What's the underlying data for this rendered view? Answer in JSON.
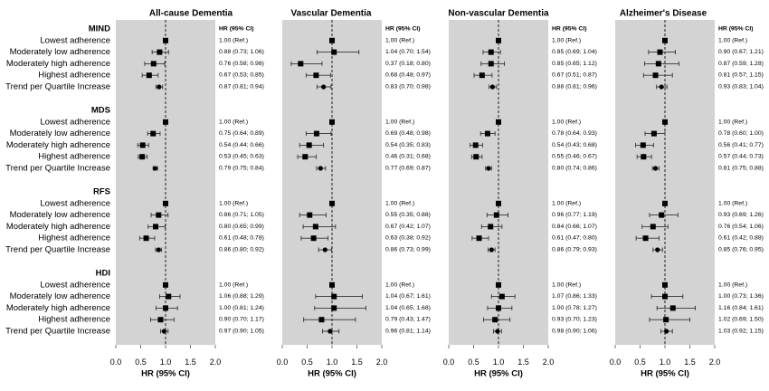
{
  "y_axis": {
    "groups": [
      "MIND",
      "MDS",
      "RFS",
      "HDI"
    ],
    "rows": [
      "Lowest adherence",
      "Moderately low adherence",
      "Moderately high adherence",
      "Highest adherence",
      "Trend per Quartile Increase"
    ]
  },
  "chart_data": [
    {
      "type": "scatter",
      "title": "All-cause Dementia",
      "column_header": "HR (95% CI)",
      "xlabel": "HR (95% CI)",
      "xlim": [
        0,
        2
      ],
      "xticks": [
        0,
        0.5,
        1.0,
        1.5,
        2.0
      ],
      "xtick_labels": [
        "0.0",
        "0.5",
        "1.0",
        "1.5",
        "2.0"
      ],
      "reference_line": 1.0,
      "groups": [
        {
          "rows": [
            {
              "hr": 1.0,
              "lo": null,
              "hi": null,
              "label": "1.00 (Ref.)"
            },
            {
              "hr": 0.88,
              "lo": 0.73,
              "hi": 1.06,
              "label": "0.88 (0.73; 1.06)"
            },
            {
              "hr": 0.76,
              "lo": 0.58,
              "hi": 0.98,
              "label": "0.76 (0.58; 0.98)"
            },
            {
              "hr": 0.67,
              "lo": 0.53,
              "hi": 0.85,
              "label": "0.67 (0.53; 0.85)"
            },
            {
              "hr": 0.87,
              "lo": 0.81,
              "hi": 0.94,
              "label": "0.87 (0.81; 0.94)"
            }
          ]
        },
        {
          "rows": [
            {
              "hr": 1.0,
              "lo": null,
              "hi": null,
              "label": "1.00 (Ref.)"
            },
            {
              "hr": 0.75,
              "lo": 0.64,
              "hi": 0.89,
              "label": "0.75 (0.64; 0.89)"
            },
            {
              "hr": 0.54,
              "lo": 0.44,
              "hi": 0.66,
              "label": "0.54 (0.44; 0.66)"
            },
            {
              "hr": 0.53,
              "lo": 0.45,
              "hi": 0.63,
              "label": "0.53 (0.45; 0.63)"
            },
            {
              "hr": 0.79,
              "lo": 0.75,
              "hi": 0.84,
              "label": "0.79 (0.75; 0.84)"
            }
          ]
        },
        {
          "rows": [
            {
              "hr": 1.0,
              "lo": null,
              "hi": null,
              "label": "1.00 (Ref.)"
            },
            {
              "hr": 0.86,
              "lo": 0.71,
              "hi": 1.05,
              "label": "0.86 (0.71; 1.05)"
            },
            {
              "hr": 0.8,
              "lo": 0.65,
              "hi": 0.99,
              "label": "0.80 (0.65; 0.99)"
            },
            {
              "hr": 0.61,
              "lo": 0.48,
              "hi": 0.78,
              "label": "0.61 (0.48; 0.78)"
            },
            {
              "hr": 0.86,
              "lo": 0.8,
              "hi": 0.92,
              "label": "0.86 (0.80; 0.92)"
            }
          ]
        },
        {
          "rows": [
            {
              "hr": 1.0,
              "lo": null,
              "hi": null,
              "label": "1.00 (Ref.)"
            },
            {
              "hr": 1.06,
              "lo": 0.88,
              "hi": 1.29,
              "label": "1.06 (0.88; 1.29)"
            },
            {
              "hr": 1.0,
              "lo": 0.81,
              "hi": 1.24,
              "label": "1.00 (0.81; 1.24)"
            },
            {
              "hr": 0.9,
              "lo": 0.7,
              "hi": 1.17,
              "label": "0.90 (0.70; 1.17)"
            },
            {
              "hr": 0.97,
              "lo": 0.9,
              "hi": 1.05,
              "label": "0.97 (0.90; 1.05)"
            }
          ]
        }
      ]
    },
    {
      "type": "scatter",
      "title": "Vascular Dementia",
      "column_header": "HR (95% CI)",
      "xlabel": "HR (95% CI)",
      "xlim": [
        0,
        2
      ],
      "xticks": [
        0,
        0.5,
        1.0,
        1.5,
        2.0
      ],
      "xtick_labels": [
        "0.0",
        "0.5",
        "1.0",
        "1.5",
        "2.0"
      ],
      "reference_line": 1.0,
      "groups": [
        {
          "rows": [
            {
              "hr": 1.0,
              "lo": null,
              "hi": null,
              "label": "1.00 (Ref.)"
            },
            {
              "hr": 1.04,
              "lo": 0.7,
              "hi": 1.54,
              "label": "1.04 (0.70; 1.54)"
            },
            {
              "hr": 0.37,
              "lo": 0.18,
              "hi": 0.8,
              "label": "0.37 (0.18; 0.80)"
            },
            {
              "hr": 0.68,
              "lo": 0.48,
              "hi": 0.97,
              "label": "0.68 (0.48; 0.97)"
            },
            {
              "hr": 0.83,
              "lo": 0.7,
              "hi": 0.98,
              "label": "0.83 (0.70; 0.98)"
            }
          ]
        },
        {
          "rows": [
            {
              "hr": 1.0,
              "lo": null,
              "hi": null,
              "label": "1.00 (Ref.)"
            },
            {
              "hr": 0.69,
              "lo": 0.48,
              "hi": 0.98,
              "label": "0.69 (0.48; 0.98)"
            },
            {
              "hr": 0.54,
              "lo": 0.35,
              "hi": 0.83,
              "label": "0.54 (0.35; 0.83)"
            },
            {
              "hr": 0.46,
              "lo": 0.31,
              "hi": 0.68,
              "label": "0.46 (0.31; 0.68)"
            },
            {
              "hr": 0.77,
              "lo": 0.69,
              "hi": 0.87,
              "label": "0.77 (0.69; 0.87)"
            }
          ]
        },
        {
          "rows": [
            {
              "hr": 1.0,
              "lo": null,
              "hi": null,
              "label": "1.00 (Ref.)"
            },
            {
              "hr": 0.55,
              "lo": 0.35,
              "hi": 0.88,
              "label": "0.55 (0.35; 0.88)"
            },
            {
              "hr": 0.67,
              "lo": 0.42,
              "hi": 1.07,
              "label": "0.67 (0.42; 1.07)"
            },
            {
              "hr": 0.63,
              "lo": 0.38,
              "hi": 0.92,
              "label": "0.63 (0.38; 0.92)"
            },
            {
              "hr": 0.86,
              "lo": 0.73,
              "hi": 0.99,
              "label": "0.86 (0.73; 0.99)"
            }
          ]
        },
        {
          "rows": [
            {
              "hr": 1.0,
              "lo": null,
              "hi": null,
              "label": "1.00 (Ref.)"
            },
            {
              "hr": 1.04,
              "lo": 0.67,
              "hi": 1.61,
              "label": "1.04 (0.67; 1.61)"
            },
            {
              "hr": 1.04,
              "lo": 0.65,
              "hi": 1.68,
              "label": "1.04 (0.65; 1.68)"
            },
            {
              "hr": 0.79,
              "lo": 0.43,
              "hi": 1.47,
              "label": "0.79 (0.43; 1.47)"
            },
            {
              "hr": 0.96,
              "lo": 0.81,
              "hi": 1.14,
              "label": "0.96 (0.81; 1.14)"
            }
          ]
        }
      ]
    },
    {
      "type": "scatter",
      "title": "Non-vascular Dementia",
      "column_header": "HR (95% CI)",
      "xlabel": "HR (95% CI)",
      "xlim": [
        0,
        2
      ],
      "xticks": [
        0,
        0.5,
        1.0,
        1.5,
        2.0
      ],
      "xtick_labels": [
        "0.0",
        "0.5",
        "1.0",
        "1.5",
        "2.0"
      ],
      "reference_line": 1.0,
      "groups": [
        {
          "rows": [
            {
              "hr": 1.0,
              "lo": null,
              "hi": null,
              "label": "1.00 (Ref.)"
            },
            {
              "hr": 0.85,
              "lo": 0.69,
              "hi": 1.04,
              "label": "0.85 (0.69; 1.04)"
            },
            {
              "hr": 0.85,
              "lo": 0.65,
              "hi": 1.12,
              "label": "0.85 (0.65; 1.12)"
            },
            {
              "hr": 0.67,
              "lo": 0.51,
              "hi": 0.87,
              "label": "0.67 (0.51; 0.87)"
            },
            {
              "hr": 0.88,
              "lo": 0.81,
              "hi": 0.96,
              "label": "0.88 (0.81; 0.96)"
            }
          ]
        },
        {
          "rows": [
            {
              "hr": 1.0,
              "lo": null,
              "hi": null,
              "label": "1.00 (Ref.)"
            },
            {
              "hr": 0.78,
              "lo": 0.64,
              "hi": 0.93,
              "label": "0.78 (0.64; 0.93)"
            },
            {
              "hr": 0.54,
              "lo": 0.43,
              "hi": 0.68,
              "label": "0.54 (0.43; 0.68)"
            },
            {
              "hr": 0.55,
              "lo": 0.46,
              "hi": 0.67,
              "label": "0.55 (0.46; 0.67)"
            },
            {
              "hr": 0.8,
              "lo": 0.74,
              "hi": 0.86,
              "label": "0.80 (0.74; 0.86)"
            }
          ]
        },
        {
          "rows": [
            {
              "hr": 1.0,
              "lo": null,
              "hi": null,
              "label": "1.00 (Ref.)"
            },
            {
              "hr": 0.96,
              "lo": 0.77,
              "hi": 1.19,
              "label": "0.96 (0.77; 1.19)"
            },
            {
              "hr": 0.84,
              "lo": 0.66,
              "hi": 1.07,
              "label": "0.84 (0.66; 1.07)"
            },
            {
              "hr": 0.61,
              "lo": 0.47,
              "hi": 0.8,
              "label": "0.61 (0.47; 0.80)"
            },
            {
              "hr": 0.86,
              "lo": 0.79,
              "hi": 0.93,
              "label": "0.86 (0.79; 0.93)"
            }
          ]
        },
        {
          "rows": [
            {
              "hr": 1.0,
              "lo": null,
              "hi": null,
              "label": "1.00 (Ref.)"
            },
            {
              "hr": 1.07,
              "lo": 0.86,
              "hi": 1.33,
              "label": "1.07 (0.86; 1.33)"
            },
            {
              "hr": 1.0,
              "lo": 0.78,
              "hi": 1.27,
              "label": "1.00 (0.78; 1.27)"
            },
            {
              "hr": 0.93,
              "lo": 0.7,
              "hi": 1.23,
              "label": "0.93 (0.70; 1.23)"
            },
            {
              "hr": 0.98,
              "lo": 0.9,
              "hi": 1.06,
              "label": "0.98 (0.90; 1.06)"
            }
          ]
        }
      ]
    },
    {
      "type": "scatter",
      "title": "Alzheimer's Disease",
      "column_header": "HR (95% CI)",
      "xlabel": "HR (95% CI)",
      "xlim": [
        0,
        2
      ],
      "xticks": [
        0,
        0.5,
        1.0,
        1.5,
        2.0
      ],
      "xtick_labels": [
        "0.0",
        "0.5",
        "1.0",
        "1.5",
        "2.0"
      ],
      "reference_line": 1.0,
      "groups": [
        {
          "rows": [
            {
              "hr": 1.0,
              "lo": null,
              "hi": null,
              "label": "1.00 (Ref.)"
            },
            {
              "hr": 0.9,
              "lo": 0.67,
              "hi": 1.21,
              "label": "0.90 (0.67; 1.21)"
            },
            {
              "hr": 0.87,
              "lo": 0.59,
              "hi": 1.28,
              "label": "0.87 (0.59; 1.28)"
            },
            {
              "hr": 0.81,
              "lo": 0.57,
              "hi": 1.15,
              "label": "0.81 (0.57; 1.15)"
            },
            {
              "hr": 0.93,
              "lo": 0.83,
              "hi": 1.04,
              "label": "0.93 (0.83; 1.04)"
            }
          ]
        },
        {
          "rows": [
            {
              "hr": 1.0,
              "lo": null,
              "hi": null,
              "label": "1.00 (Ref.)"
            },
            {
              "hr": 0.78,
              "lo": 0.6,
              "hi": 1.0,
              "label": "0.78 (0.60; 1.00)"
            },
            {
              "hr": 0.56,
              "lo": 0.41,
              "hi": 0.77,
              "label": "0.56 (0.41; 0.77)"
            },
            {
              "hr": 0.57,
              "lo": 0.44,
              "hi": 0.73,
              "label": "0.57 (0.44; 0.73)"
            },
            {
              "hr": 0.81,
              "lo": 0.75,
              "hi": 0.88,
              "label": "0.81 (0.75; 0.88)"
            }
          ]
        },
        {
          "rows": [
            {
              "hr": 1.0,
              "lo": null,
              "hi": null,
              "label": "1.00 (Ref.)"
            },
            {
              "hr": 0.93,
              "lo": 0.69,
              "hi": 1.26,
              "label": "0.93 (0.69; 1.26)"
            },
            {
              "hr": 0.76,
              "lo": 0.54,
              "hi": 1.06,
              "label": "0.76 (0.54; 1.06)"
            },
            {
              "hr": 0.61,
              "lo": 0.42,
              "hi": 0.88,
              "label": "0.61 (0.42; 0.88)"
            },
            {
              "hr": 0.85,
              "lo": 0.76,
              "hi": 0.95,
              "label": "0.85 (0.76; 0.95)"
            }
          ]
        },
        {
          "rows": [
            {
              "hr": 1.0,
              "lo": null,
              "hi": null,
              "label": "1.00 (Ref.)"
            },
            {
              "hr": 1.0,
              "lo": 0.73,
              "hi": 1.36,
              "label": "1.00 (0.73; 1.36)"
            },
            {
              "hr": 1.16,
              "lo": 0.84,
              "hi": 1.61,
              "label": "1.16 (0.84; 1.61)"
            },
            {
              "hr": 1.02,
              "lo": 0.69,
              "hi": 1.5,
              "label": "1.02 (0.69; 1.50)"
            },
            {
              "hr": 1.03,
              "lo": 0.92,
              "hi": 1.15,
              "label": "1.03 (0.92; 1.15)"
            }
          ]
        }
      ]
    }
  ]
}
